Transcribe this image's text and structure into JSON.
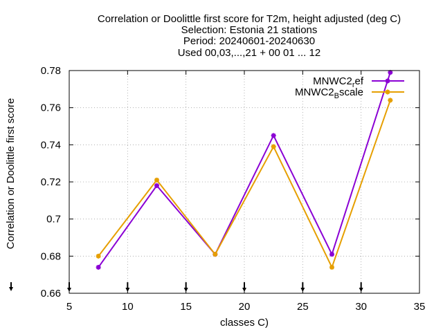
{
  "chart_data": {
    "type": "line",
    "title": [
      "Correlation or Doolittle first score  for T2m, height adjusted (deg C)",
      "Selection: Estonia     21 stations",
      "Period: 20240601-20240630",
      "Used 00,03,...,21 + 00 01 ... 12"
    ],
    "xlabel": "classes C)",
    "ylabel": "Correlation or Doolittle first score",
    "xlim": [
      5,
      35
    ],
    "ylim": [
      0.66,
      0.78
    ],
    "xticks": [
      5,
      10,
      15,
      20,
      25,
      30,
      35
    ],
    "yticks": [
      0.66,
      0.68,
      0.7,
      0.72,
      0.74,
      0.76,
      0.78
    ],
    "xtick_labels": [
      "5",
      "10",
      "15",
      "20",
      "25",
      "30",
      "35"
    ],
    "ytick_labels": [
      "0.66",
      "0.68",
      "0.7",
      "0.72",
      "0.74",
      "0.76",
      "0.78"
    ],
    "grid": true,
    "legend_position": "top-right",
    "count_markers_x": [
      5,
      10,
      15,
      20,
      25,
      30
    ],
    "x": [
      7.5,
      12.5,
      17.5,
      22.5,
      27.5,
      32.5
    ],
    "series": [
      {
        "name": "MNWC2_ref",
        "legend_main": "MNWC2",
        "legend_sub": "r",
        "legend_tail": "ef",
        "color": "#8a00d4",
        "values": [
          0.674,
          0.718,
          0.681,
          0.745,
          0.681,
          0.779
        ]
      },
      {
        "name": "MNWC2_Bscale",
        "legend_main": "MNWC2",
        "legend_sub": "B",
        "legend_tail": "scale",
        "color": "#e69f00",
        "values": [
          0.68,
          0.721,
          0.681,
          0.739,
          0.674,
          0.764
        ]
      }
    ]
  }
}
